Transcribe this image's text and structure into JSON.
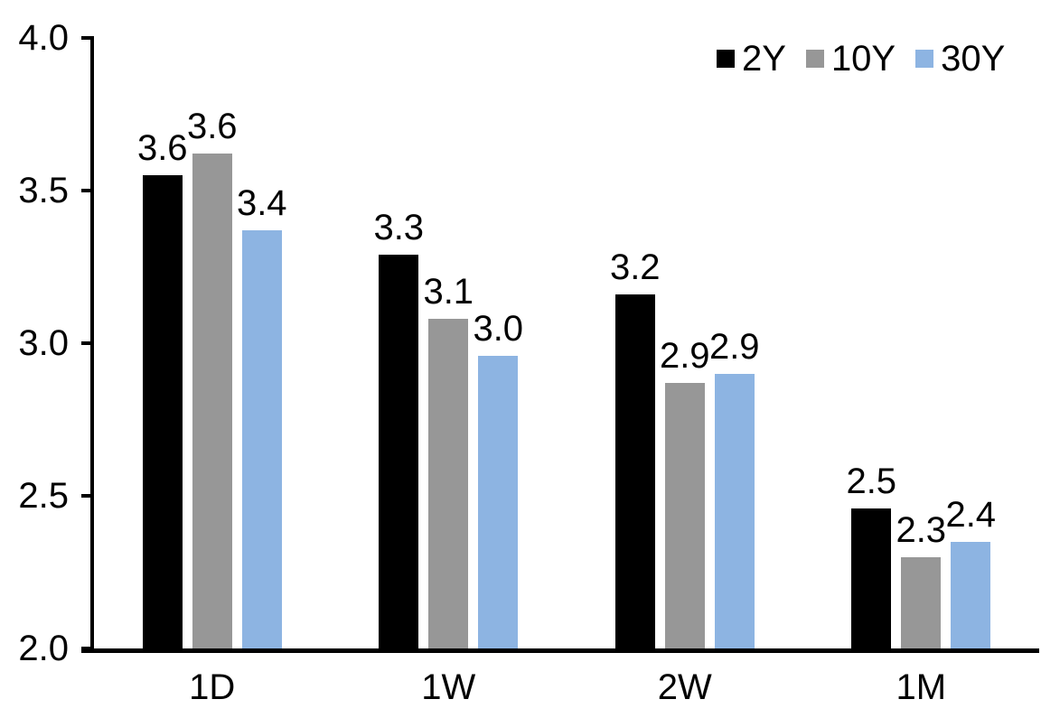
{
  "chart_data": {
    "type": "bar",
    "title": "",
    "categories": [
      "1D",
      "1W",
      "2W",
      "1M"
    ],
    "series": [
      {
        "name": "2Y",
        "color": "#000000",
        "values": [
          3.55,
          3.29,
          3.16,
          2.46
        ],
        "labels": [
          "3.6",
          "3.3",
          "3.2",
          "2.5"
        ]
      },
      {
        "name": "10Y",
        "color": "#979797",
        "values": [
          3.62,
          3.08,
          2.87,
          2.3
        ],
        "labels": [
          "3.6",
          "3.1",
          "2.9",
          "2.3"
        ]
      },
      {
        "name": "30Y",
        "color": "#8DB4E2",
        "values": [
          3.37,
          2.96,
          2.9,
          2.35
        ],
        "labels": [
          "3.4",
          "3.0",
          "2.9",
          "2.4"
        ]
      }
    ],
    "y_axis": {
      "min": 2.0,
      "max": 4.0,
      "step": 0.5,
      "tick_labels": [
        "4.0",
        "3.5",
        "3.0",
        "2.5",
        "2.0"
      ]
    },
    "legend": {
      "position": "top-right",
      "entries": [
        "2Y",
        "10Y",
        "30Y"
      ]
    },
    "grid": false,
    "axis_color": "#000000",
    "label_color": "#000000"
  }
}
